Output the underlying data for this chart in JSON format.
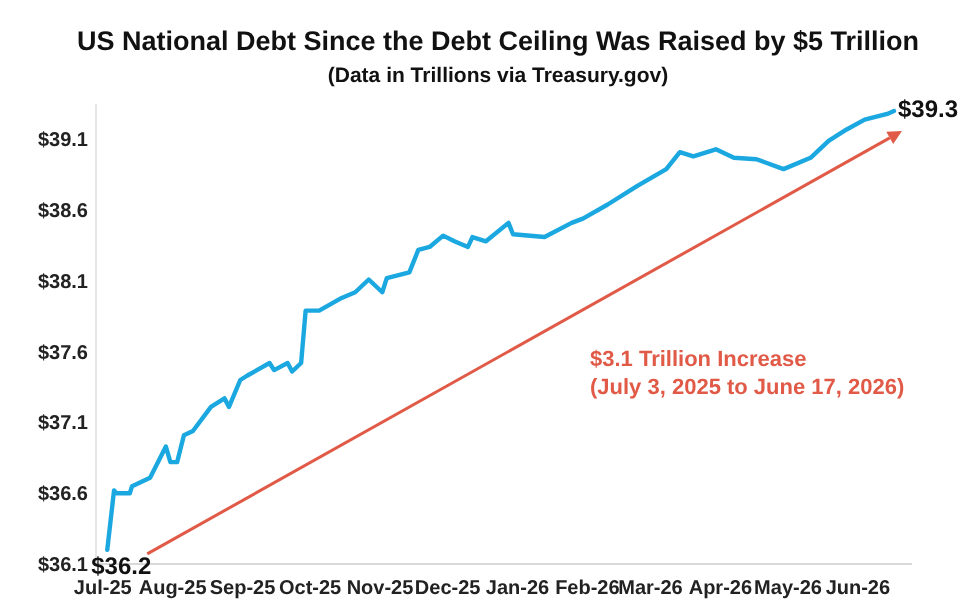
{
  "chart_data": {
    "type": "line",
    "title": "US National Debt Since the Debt Ceiling Was Raised by $5 Trillion",
    "subtitle": "(Data in Trillions via Treasury.gov)",
    "x": [
      "2025-07-03",
      "2025-07-06",
      "2025-07-07",
      "2025-07-13",
      "2025-07-14",
      "2025-07-22",
      "2025-07-29",
      "2025-07-31",
      "2025-08-03",
      "2025-08-06",
      "2025-08-10",
      "2025-08-18",
      "2025-08-24",
      "2025-08-26",
      "2025-08-31",
      "2025-09-03",
      "2025-09-13",
      "2025-09-15",
      "2025-09-21",
      "2025-09-23",
      "2025-09-27",
      "2025-09-29",
      "2025-10-05",
      "2025-10-15",
      "2025-10-21",
      "2025-10-27",
      "2025-11-02",
      "2025-11-04",
      "2025-11-14",
      "2025-11-18",
      "2025-11-23",
      "2025-11-29",
      "2025-12-04",
      "2025-12-10",
      "2025-12-12",
      "2025-12-18",
      "2025-12-28",
      "2025-12-30",
      "2026-01-13",
      "2026-01-25",
      "2026-01-30",
      "2026-02-10",
      "2026-02-23",
      "2026-03-08",
      "2026-03-14",
      "2026-03-20",
      "2026-03-30",
      "2026-04-07",
      "2026-04-17",
      "2026-04-29",
      "2026-05-11",
      "2026-05-19",
      "2026-05-27",
      "2026-06-04",
      "2026-06-14",
      "2026-06-17"
    ],
    "series": [
      {
        "color": "#1ba8e0",
        "values": [
          36.2,
          36.62,
          36.6,
          36.6,
          36.65,
          36.71,
          36.93,
          36.82,
          36.82,
          37.01,
          37.04,
          37.21,
          37.27,
          37.21,
          37.4,
          37.43,
          37.52,
          37.47,
          37.52,
          37.46,
          37.52,
          37.89,
          37.89,
          37.98,
          38.02,
          38.11,
          38.02,
          38.12,
          38.16,
          38.32,
          38.34,
          38.42,
          38.38,
          38.34,
          38.41,
          38.38,
          38.51,
          38.43,
          38.41,
          38.51,
          38.54,
          38.64,
          38.77,
          38.89,
          39.01,
          38.98,
          39.03,
          38.97,
          38.96,
          38.89,
          38.97,
          39.09,
          39.17,
          39.24,
          39.28,
          39.3
        ]
      }
    ],
    "xlim": [
      "2025-06-28",
      "2026-06-25"
    ],
    "xticks": [
      {
        "value": "2025-07-01",
        "label": "Jul-25"
      },
      {
        "value": "2025-08-01",
        "label": "Aug-25"
      },
      {
        "value": "2025-09-01",
        "label": "Sep-25"
      },
      {
        "value": "2025-10-01",
        "label": "Oct-25"
      },
      {
        "value": "2025-11-01",
        "label": "Nov-25"
      },
      {
        "value": "2025-12-01",
        "label": "Dec-25"
      },
      {
        "value": "2026-01-01",
        "label": "Jan-26"
      },
      {
        "value": "2026-02-01",
        "label": "Feb-26"
      },
      {
        "value": "2026-03-01",
        "label": "Mar-26"
      },
      {
        "value": "2026-04-01",
        "label": "Apr-26"
      },
      {
        "value": "2026-05-01",
        "label": "May-26"
      },
      {
        "value": "2026-06-01",
        "label": "Jun-26"
      }
    ],
    "ylim": [
      36.1,
      39.35
    ],
    "yticks": [
      {
        "value": 36.1,
        "label": "$36.1"
      },
      {
        "value": 36.6,
        "label": "$36.6"
      },
      {
        "value": 37.1,
        "label": "$37.1"
      },
      {
        "value": 37.6,
        "label": "$37.6"
      },
      {
        "value": 38.1,
        "label": "$38.1"
      },
      {
        "value": 38.6,
        "label": "$38.6"
      },
      {
        "value": 39.1,
        "label": "$39.1"
      }
    ],
    "grid": false,
    "line_style": "solid",
    "marker": "none",
    "annotations": [
      {
        "text": "$36.2",
        "x": "2025-07-03",
        "y": 36.2
      },
      {
        "text": "$39.3",
        "x": "2026-06-17",
        "y": 39.3
      },
      "$3.1 Trillion Increase",
      "(July 3, 2025 to June 17, 2026)"
    ]
  }
}
